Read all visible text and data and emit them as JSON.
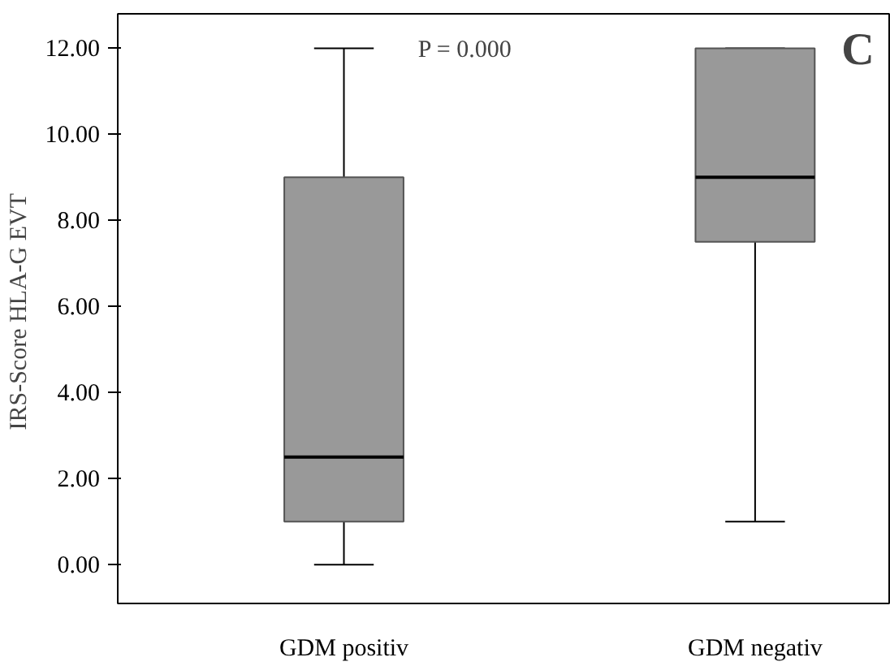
{
  "chart_data": {
    "type": "box",
    "categories": [
      "GDM positiv",
      "GDM negativ"
    ],
    "boxes": [
      {
        "low": 0,
        "q1": 1,
        "median": 2.5,
        "q3": 9,
        "high": 12
      },
      {
        "low": 1,
        "q1": 7.5,
        "median": 9,
        "q3": 12,
        "high": 12
      }
    ],
    "color": "#999999",
    "ylabel": "IRS-Score  HLA-G EVT",
    "ylim": [
      -0.9,
      12.8
    ],
    "yticks": [
      {
        "value": 0,
        "label": "0.00"
      },
      {
        "value": 2,
        "label": "2.00"
      },
      {
        "value": 4,
        "label": "4.00"
      },
      {
        "value": 6,
        "label": "6.00"
      },
      {
        "value": 8,
        "label": "8.00"
      },
      {
        "value": 10,
        "label": "10.00"
      },
      {
        "value": 12,
        "label": "12.00"
      }
    ],
    "annotations": [
      "P = 0.000",
      "C"
    ],
    "grid": false
  }
}
